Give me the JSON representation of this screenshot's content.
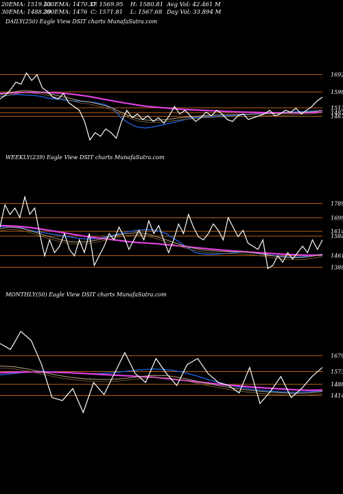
{
  "header": {
    "r1c1": "20EMA: 1519.33",
    "r1c2": "100EMA: 1470.37",
    "r1c3": "O: 1569.95",
    "r1c4": "H: 1580.81",
    "r1c5": "Avg Vol: 42.461 M",
    "r2c1": "30EMA: 1488.39",
    "r2c2": "200EMA: 1476",
    "r2c3": "C: 1571.81",
    "r2c4": "L: 1567.68",
    "r2c5": "Day Vol: 33.894  M"
  },
  "colors": {
    "background": "#000000",
    "price": "#ffffff",
    "ema_blue": "#1f5fd8",
    "ema_magenta": "#e040e0",
    "ema_tan": "#c8b48c",
    "level_line": "#b8641e"
  },
  "chart_data": [
    {
      "type": "line",
      "title": "DAILY(250) Eagle  View  DSIT charts MunafaSutra.com",
      "ylim": [
        1300,
        1760
      ],
      "levels": [
        "1692",
        "1598",
        "1513",
        "1487",
        "1467"
      ],
      "series": [
        {
          "color": "ema_blue",
          "values": [
            1575,
            1580,
            1585,
            1582,
            1580,
            1575,
            1565,
            1560,
            1555,
            1550,
            1548,
            1545,
            1540,
            1530,
            1510,
            1460,
            1430,
            1410,
            1405,
            1410,
            1420,
            1430,
            1440,
            1450,
            1460,
            1462,
            1465,
            1468,
            1470,
            1472,
            1475,
            1478,
            1480,
            1482,
            1485,
            1488,
            1490,
            1492,
            1494,
            1496,
            1500
          ]
        },
        {
          "color": "ema_magenta",
          "values": [
            1590,
            1592,
            1594,
            1595,
            1596,
            1596,
            1595,
            1593,
            1590,
            1586,
            1580,
            1574,
            1566,
            1558,
            1550,
            1542,
            1535,
            1528,
            1522,
            1518,
            1514,
            1510,
            1507,
            1504,
            1502,
            1500,
            1498,
            1496,
            1494,
            1492,
            1490,
            1489,
            1488,
            1487,
            1487,
            1486,
            1486,
            1486,
            1487,
            1488,
            1490
          ]
        },
        {
          "color": "ema_tan",
          "values": [
            1585,
            1590,
            1600,
            1605,
            1602,
            1598,
            1590,
            1580,
            1570,
            1560,
            1550,
            1545,
            1535,
            1525,
            1510,
            1490,
            1470,
            1455,
            1448,
            1445,
            1448,
            1452,
            1458,
            1462,
            1466,
            1470,
            1472,
            1474,
            1476,
            1477,
            1478,
            1479,
            1480,
            1481,
            1482,
            1484,
            1486,
            1488,
            1490,
            1493,
            1500
          ]
        }
      ],
      "price": [
        1560,
        1580,
        1610,
        1650,
        1640,
        1700,
        1660,
        1690,
        1620,
        1600,
        1570,
        1560,
        1590,
        1540,
        1520,
        1500,
        1440,
        1340,
        1380,
        1360,
        1400,
        1380,
        1350,
        1440,
        1500,
        1460,
        1480,
        1450,
        1470,
        1440,
        1460,
        1430,
        1470,
        1520,
        1480,
        1500,
        1470,
        1440,
        1460,
        1490,
        1470,
        1500,
        1480,
        1450,
        1440,
        1470,
        1480,
        1450,
        1460,
        1470,
        1480,
        1500,
        1470,
        1480,
        1500,
        1490,
        1510,
        1480,
        1500,
        1520,
        1550,
        1570
      ]
    },
    {
      "type": "line",
      "title": "WEEKLY(239) Eagle  View  DSIT charts MunafaSutra.com",
      "ylim": [
        1300,
        1860
      ],
      "levels": [
        "1789",
        "1699",
        "1614",
        "1584",
        "1461",
        "1388"
      ],
      "series": [
        {
          "color": "ema_blue",
          "values": [
            1640,
            1645,
            1640,
            1620,
            1610,
            1600,
            1590,
            1580,
            1570,
            1565,
            1570,
            1580,
            1595,
            1610,
            1620,
            1625,
            1620,
            1600,
            1560,
            1520,
            1480,
            1470,
            1470,
            1475,
            1480,
            1485,
            1478,
            1470,
            1462,
            1455,
            1450,
            1455,
            1462,
            1470
          ]
        },
        {
          "color": "ema_magenta",
          "values": [
            1650,
            1648,
            1644,
            1638,
            1630,
            1620,
            1610,
            1600,
            1590,
            1580,
            1572,
            1565,
            1558,
            1550,
            1544,
            1540,
            1536,
            1530,
            1524,
            1518,
            1512,
            1506,
            1500,
            1495,
            1490,
            1486,
            1482,
            1478,
            1474,
            1470,
            1467,
            1465,
            1464,
            1465
          ]
        },
        {
          "color": "ema_tan",
          "values": [
            1630,
            1640,
            1635,
            1620,
            1600,
            1580,
            1565,
            1550,
            1545,
            1550,
            1560,
            1575,
            1590,
            1600,
            1605,
            1600,
            1580,
            1560,
            1540,
            1520,
            1505,
            1495,
            1490,
            1488,
            1486,
            1484,
            1478,
            1470,
            1460,
            1452,
            1448,
            1450,
            1458,
            1468
          ]
        }
      ],
      "price": [
        1640,
        1780,
        1720,
        1760,
        1700,
        1830,
        1720,
        1760,
        1600,
        1460,
        1560,
        1480,
        1520,
        1600,
        1500,
        1460,
        1560,
        1480,
        1600,
        1400,
        1460,
        1520,
        1600,
        1560,
        1640,
        1580,
        1500,
        1560,
        1620,
        1560,
        1680,
        1600,
        1650,
        1560,
        1480,
        1560,
        1660,
        1600,
        1720,
        1640,
        1580,
        1560,
        1600,
        1660,
        1620,
        1560,
        1700,
        1640,
        1580,
        1620,
        1540,
        1520,
        1500,
        1560,
        1380,
        1400,
        1460,
        1420,
        1480,
        1440,
        1480,
        1520,
        1480,
        1560,
        1500,
        1560
      ]
    },
    {
      "type": "line",
      "title": "MONTHLY(50) Eagle  View  DSIT charts MunafaSutra.com",
      "ylim": [
        1260,
        1900
      ],
      "levels": [
        "1679",
        "1573",
        "1488",
        "1414"
      ],
      "series": [
        {
          "color": "ema_blue",
          "values": [
            1550,
            1560,
            1570,
            1575,
            1570,
            1565,
            1560,
            1560,
            1565,
            1575,
            1585,
            1590,
            1585,
            1570,
            1545,
            1515,
            1490,
            1470,
            1455,
            1445,
            1438,
            1435,
            1438,
            1445
          ]
        },
        {
          "color": "ema_magenta",
          "values": [
            1565,
            1568,
            1570,
            1570,
            1568,
            1565,
            1560,
            1555,
            1550,
            1545,
            1540,
            1535,
            1525,
            1515,
            1505,
            1495,
            1485,
            1478,
            1470,
            1463,
            1457,
            1452,
            1448,
            1450
          ]
        },
        {
          "color": "ema_tan",
          "values": [
            1610,
            1605,
            1590,
            1570,
            1550,
            1535,
            1525,
            1520,
            1520,
            1528,
            1540,
            1548,
            1545,
            1530,
            1510,
            1490,
            1472,
            1458,
            1446,
            1438,
            1432,
            1428,
            1430,
            1440
          ]
        }
      ],
      "price": [
        1760,
        1720,
        1840,
        1780,
        1620,
        1400,
        1380,
        1460,
        1300,
        1500,
        1420,
        1560,
        1700,
        1560,
        1500,
        1660,
        1560,
        1480,
        1620,
        1660,
        1560,
        1500,
        1480,
        1430,
        1600,
        1360,
        1440,
        1540,
        1400,
        1460,
        1540,
        1600
      ]
    }
  ]
}
